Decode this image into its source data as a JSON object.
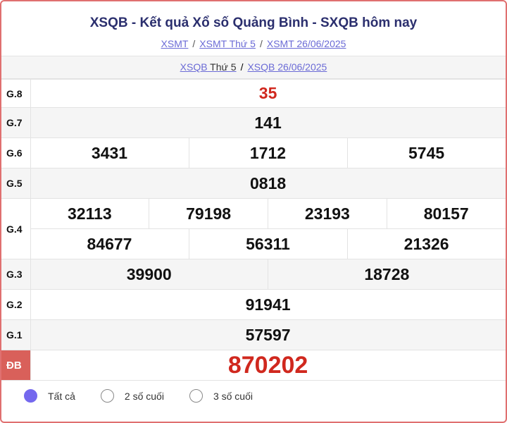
{
  "header": {
    "title": "XSQB - Kết quả Xổ số Quảng Bình - SXQB hôm nay",
    "breadcrumbs": [
      "XSMT",
      "XSMT Thứ 5",
      "XSMT 26/06/2025"
    ],
    "sub_links": {
      "first_link": "XSQB",
      "first_rest": " Thứ 5",
      "second": "XSQB 26/06/2025"
    }
  },
  "results": [
    {
      "label": "G.8",
      "rows": [
        [
          "35"
        ]
      ],
      "highlight": true
    },
    {
      "label": "G.7",
      "rows": [
        [
          "141"
        ]
      ]
    },
    {
      "label": "G.6",
      "rows": [
        [
          "3431",
          "1712",
          "5745"
        ]
      ]
    },
    {
      "label": "G.5",
      "rows": [
        [
          "0818"
        ]
      ]
    },
    {
      "label": "G.4",
      "rows": [
        [
          "32113",
          "79198",
          "23193",
          "80157"
        ],
        [
          "84677",
          "56311",
          "21326"
        ]
      ]
    },
    {
      "label": "G.3",
      "rows": [
        [
          "39900",
          "18728"
        ]
      ]
    },
    {
      "label": "G.2",
      "rows": [
        [
          "91941"
        ]
      ]
    },
    {
      "label": "G.1",
      "rows": [
        [
          "57597"
        ]
      ]
    },
    {
      "label": "ĐB",
      "rows": [
        [
          "870202"
        ]
      ],
      "highlight": true,
      "special": true
    }
  ],
  "filter": {
    "options": [
      "Tất cả",
      "2 số cuối",
      "3 số cuối"
    ],
    "selected": 0
  },
  "colors": {
    "accent": "#d0281e",
    "title": "#2b2f6e",
    "link": "#6b6bd6",
    "radio": "#7468ee"
  }
}
